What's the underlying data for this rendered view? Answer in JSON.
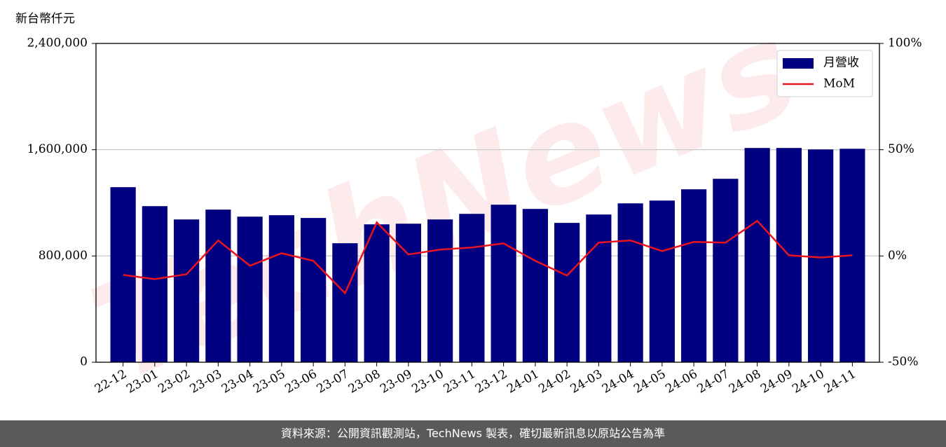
{
  "chart_data": {
    "type": "bar_line",
    "ylabel": "新台幣仟元",
    "watermark": "TechNews",
    "footer": "資料來源：公開資訊觀測站，TechNews 製表，確切最新訊息以原站公告為準",
    "categories": [
      "22-12",
      "23-01",
      "23-02",
      "23-03",
      "23-04",
      "23-05",
      "23-06",
      "23-07",
      "23-08",
      "23-09",
      "23-10",
      "23-11",
      "23-12",
      "24-01",
      "24-02",
      "24-03",
      "24-04",
      "24-05",
      "24-06",
      "24-07",
      "24-08",
      "24-09",
      "24-10",
      "24-11"
    ],
    "series": [
      {
        "name": "月營收",
        "type": "bar",
        "color": "#000080",
        "values": [
          1318000,
          1175000,
          1075000,
          1149000,
          1096000,
          1107000,
          1086000,
          896000,
          1038000,
          1043000,
          1075000,
          1117000,
          1186000,
          1154000,
          1049000,
          1112000,
          1196000,
          1217000,
          1302000,
          1381000,
          1613000,
          1613000,
          1602000,
          1607000
        ]
      },
      {
        "name": "MoM",
        "type": "line",
        "color": "#e8141e",
        "axis": "y2",
        "values": [
          -8.9,
          -10.9,
          -8.6,
          7.3,
          -4.6,
          1.3,
          -2.3,
          -17.5,
          15.8,
          0.7,
          3.0,
          4.0,
          5.9,
          -2.3,
          -9.2,
          6.3,
          7.3,
          2.3,
          6.6,
          6.3,
          16.5,
          0.3,
          -0.7,
          0.3
        ]
      }
    ],
    "ylim": [
      0,
      2400000
    ],
    "yticks": [
      0,
      {
        "value": 800000,
        "label": "800,000"
      },
      {
        "value": 1600000,
        "label": "1,600,000"
      },
      {
        "value": 2400000,
        "label": "2,400,000"
      }
    ],
    "y2lim": [
      -50,
      100
    ],
    "y2ticks": [
      {
        "value": -50,
        "label": "-50%"
      },
      {
        "value": 0,
        "label": "0%"
      },
      {
        "value": 50,
        "label": "50%"
      },
      {
        "value": 100,
        "label": "100%"
      }
    ],
    "grid": true,
    "legend": "upper right"
  }
}
